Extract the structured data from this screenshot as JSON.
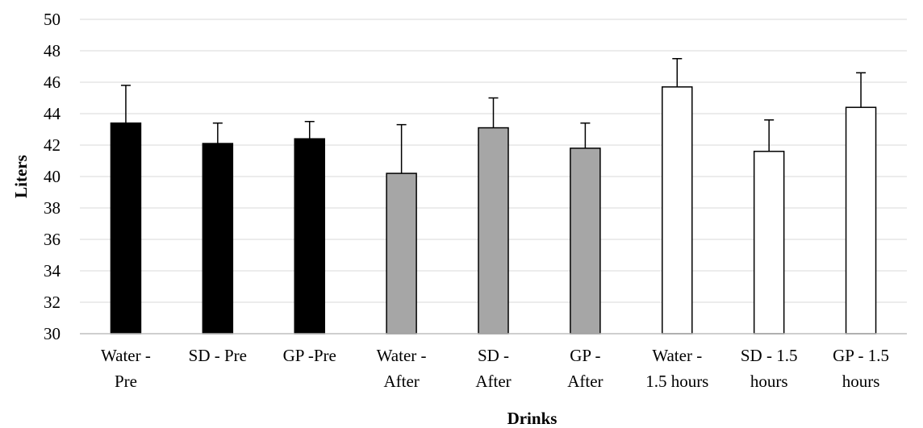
{
  "chart_data": {
    "type": "bar",
    "title": "",
    "xlabel": "Drinks",
    "ylabel": "Liters",
    "ylim": [
      30,
      50
    ],
    "yticks": [
      30,
      32,
      34,
      36,
      38,
      40,
      42,
      44,
      46,
      48,
      50
    ],
    "grid": true,
    "categories": [
      [
        "Water -",
        "Pre"
      ],
      [
        "SD - Pre"
      ],
      [
        "GP -Pre"
      ],
      [
        "Water -",
        "After"
      ],
      [
        "SD -",
        "After"
      ],
      [
        "GP -",
        "After"
      ],
      [
        "Water -",
        "1.5 hours"
      ],
      [
        "SD - 1.5",
        "hours"
      ],
      [
        "GP - 1.5",
        "hours"
      ]
    ],
    "values": [
      43.4,
      42.1,
      42.4,
      40.2,
      43.1,
      41.8,
      45.7,
      41.6,
      44.4
    ],
    "error_upper": [
      2.4,
      1.3,
      1.1,
      3.1,
      1.9,
      1.6,
      1.8,
      2.0,
      2.2
    ],
    "bar_colors": [
      "#000000",
      "#000000",
      "#000000",
      "#a6a6a6",
      "#a6a6a6",
      "#a6a6a6",
      "#ffffff",
      "#ffffff",
      "#ffffff"
    ],
    "bar_edge_color": "#000000",
    "grid_color": "#d9d9d9"
  }
}
